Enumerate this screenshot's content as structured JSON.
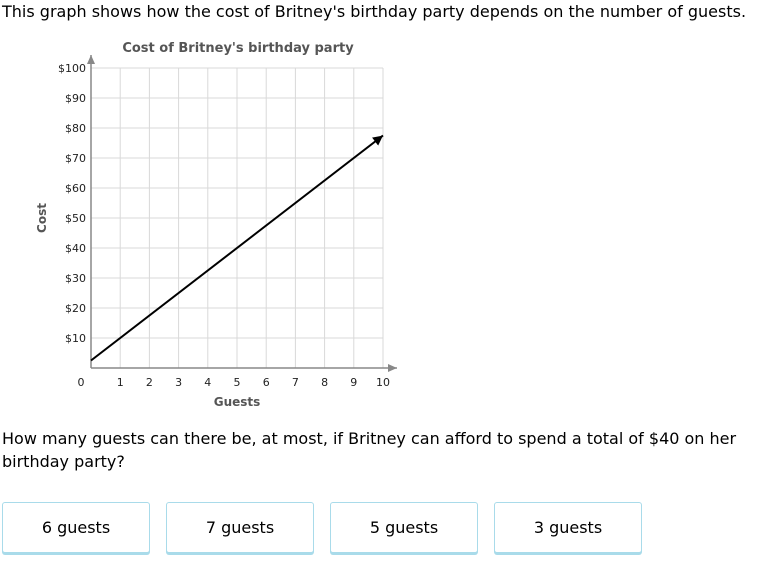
{
  "intro": "This graph shows how the cost of Britney's birthday party depends on the number of guests.",
  "chart_data": {
    "type": "line",
    "title": "Cost of Britney's birthday party",
    "xlabel": "Guests",
    "ylabel": "Cost",
    "xlim": [
      0,
      10
    ],
    "ylim": [
      0,
      100
    ],
    "x_ticks": [
      "0",
      "1",
      "2",
      "3",
      "4",
      "5",
      "6",
      "7",
      "8",
      "9",
      "10"
    ],
    "y_ticks": [
      "$10",
      "$20",
      "$30",
      "$40",
      "$50",
      "$60",
      "$70",
      "$80",
      "$90",
      "$100"
    ],
    "grid": true,
    "series": [
      {
        "x": [
          0,
          10
        ],
        "y": [
          2.5,
          77.5
        ],
        "arrow_end": true
      }
    ],
    "colors": {
      "line": "#000000",
      "grid": "#d9d9d9",
      "axis": "#888888",
      "title": "#555555"
    }
  },
  "question": "How many guests can there be, at most, if Britney can afford to spend a total of $40 on her birthday party?",
  "choices": [
    "6 guests",
    "7 guests",
    "5 guests",
    "3 guests"
  ]
}
